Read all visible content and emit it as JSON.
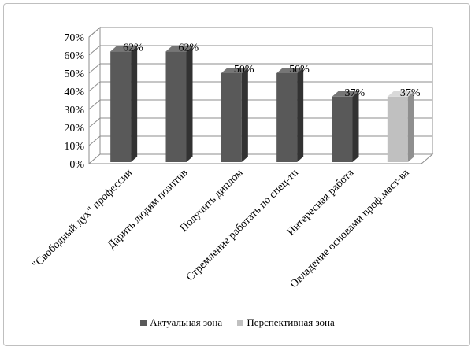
{
  "chart_data": {
    "type": "bar",
    "categories": [
      "\"Свободный дух\" профессии",
      "Дарить людям позитив",
      "Получить диплом",
      "Стремление работать по спец-ти",
      "Интересная работа",
      "Овладение основами проф.маст-ва"
    ],
    "values": [
      62,
      62,
      50,
      50,
      37,
      37
    ],
    "data_labels": [
      "62%",
      "62%",
      "50%",
      "50%",
      "37%",
      "37%"
    ],
    "zones": [
      "actual",
      "actual",
      "actual",
      "actual",
      "actual",
      "perspective"
    ],
    "yticks": [
      "0%",
      "10%",
      "20%",
      "30%",
      "40%",
      "50%",
      "60%",
      "70%"
    ],
    "ylim": [
      0,
      70
    ],
    "grid": true,
    "legend_position": "bottom",
    "series": [
      {
        "key": "actual",
        "name": "Актуальная зона",
        "color": "#595959"
      },
      {
        "key": "perspective",
        "name": "Перспективная зона",
        "color": "#c0c0c0"
      }
    ]
  }
}
